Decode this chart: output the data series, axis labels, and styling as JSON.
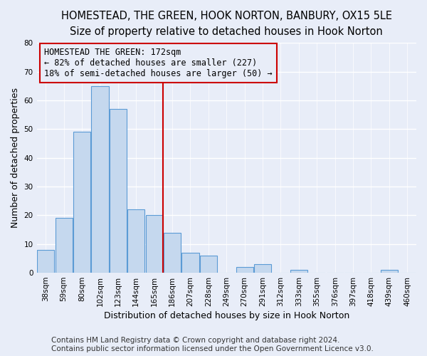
{
  "title": "HOMESTEAD, THE GREEN, HOOK NORTON, BANBURY, OX15 5LE",
  "subtitle": "Size of property relative to detached houses in Hook Norton",
  "xlabel": "Distribution of detached houses by size in Hook Norton",
  "ylabel": "Number of detached properties",
  "bar_labels": [
    "38sqm",
    "59sqm",
    "80sqm",
    "102sqm",
    "123sqm",
    "144sqm",
    "165sqm",
    "186sqm",
    "207sqm",
    "228sqm",
    "249sqm",
    "270sqm",
    "291sqm",
    "312sqm",
    "333sqm",
    "355sqm",
    "376sqm",
    "397sqm",
    "418sqm",
    "439sqm",
    "460sqm"
  ],
  "bar_values": [
    8,
    19,
    49,
    65,
    57,
    22,
    20,
    14,
    7,
    6,
    0,
    2,
    3,
    0,
    1,
    0,
    0,
    0,
    0,
    1,
    0
  ],
  "bar_color": "#c5d8ee",
  "bar_edgecolor": "#5b9bd5",
  "ylim": [
    0,
    80
  ],
  "yticks": [
    0,
    10,
    20,
    30,
    40,
    50,
    60,
    70,
    80
  ],
  "vline_x": 6.5,
  "vline_color": "#cc0000",
  "annotation_title": "HOMESTEAD THE GREEN: 172sqm",
  "annotation_line1": "← 82% of detached houses are smaller (227)",
  "annotation_line2": "18% of semi-detached houses are larger (50) →",
  "annotation_box_edgecolor": "#cc0000",
  "footer_line1": "Contains HM Land Registry data © Crown copyright and database right 2024.",
  "footer_line2": "Contains public sector information licensed under the Open Government Licence v3.0.",
  "background_color": "#e8edf8",
  "grid_color": "#ffffff",
  "title_fontsize": 10.5,
  "subtitle_fontsize": 9.5,
  "axis_label_fontsize": 9,
  "tick_fontsize": 7.5,
  "annotation_fontsize": 8.5,
  "footer_fontsize": 7.5
}
